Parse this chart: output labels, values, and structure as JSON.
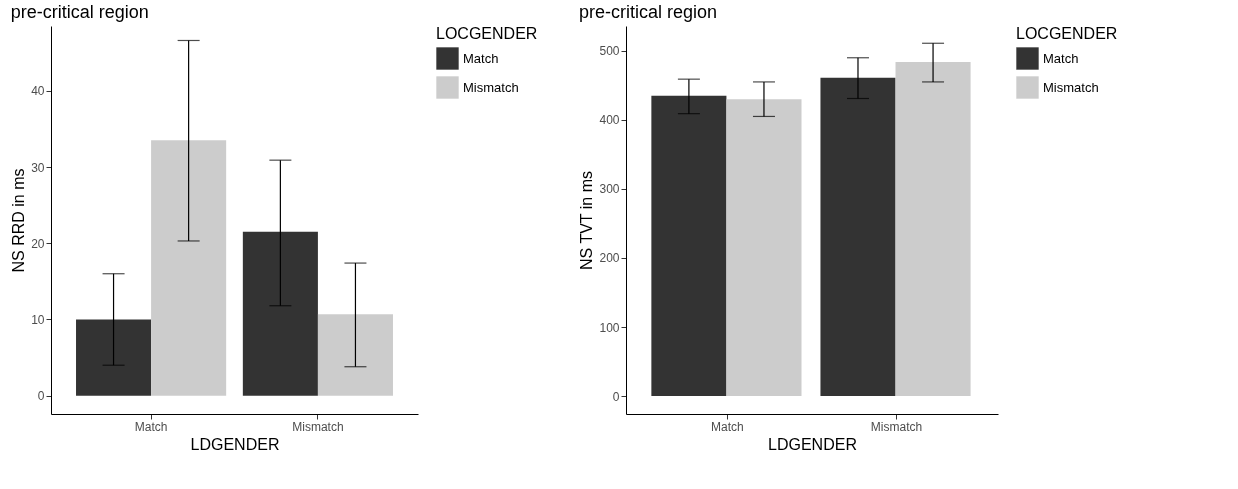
{
  "chart_data": [
    {
      "type": "bar",
      "title": "pre-critical region",
      "xlabel": "LDGENDER",
      "ylabel": "NS RRD in ms",
      "legend_title": "LOCGENDER",
      "categories": [
        "Match",
        "Mismatch"
      ],
      "series": [
        {
          "name": "Match",
          "color": "#333333",
          "values": [
            10.0,
            21.5
          ],
          "errors": [
            [
              4.0,
              16.0
            ],
            [
              11.8,
              30.9
            ]
          ]
        },
        {
          "name": "Mismatch",
          "color": "#cccccc",
          "values": [
            33.5,
            10.7
          ],
          "errors": [
            [
              20.3,
              46.6
            ],
            [
              3.8,
              17.4
            ]
          ]
        }
      ],
      "ylim": [
        -2.4,
        48.5
      ],
      "yticks": [
        0,
        10,
        20,
        30,
        40
      ],
      "grid": false,
      "legend": "right"
    },
    {
      "type": "bar",
      "title": "pre-critical region",
      "xlabel": "LDGENDER",
      "ylabel": "NS TVT in ms",
      "legend_title": "LOCGENDER",
      "categories": [
        "Match",
        "Mismatch"
      ],
      "series": [
        {
          "name": "Match",
          "color": "#333333",
          "values": [
            435,
            461
          ],
          "errors": [
            [
              409,
              459
            ],
            [
              431,
              490
            ]
          ]
        },
        {
          "name": "Mismatch",
          "color": "#cccccc",
          "values": [
            430,
            484
          ],
          "errors": [
            [
              405,
              455
            ],
            [
              455,
              511
            ]
          ]
        }
      ],
      "ylim": [
        -26,
        536
      ],
      "yticks": [
        0,
        100,
        200,
        300,
        400,
        500
      ],
      "grid": false,
      "legend": "right"
    }
  ]
}
